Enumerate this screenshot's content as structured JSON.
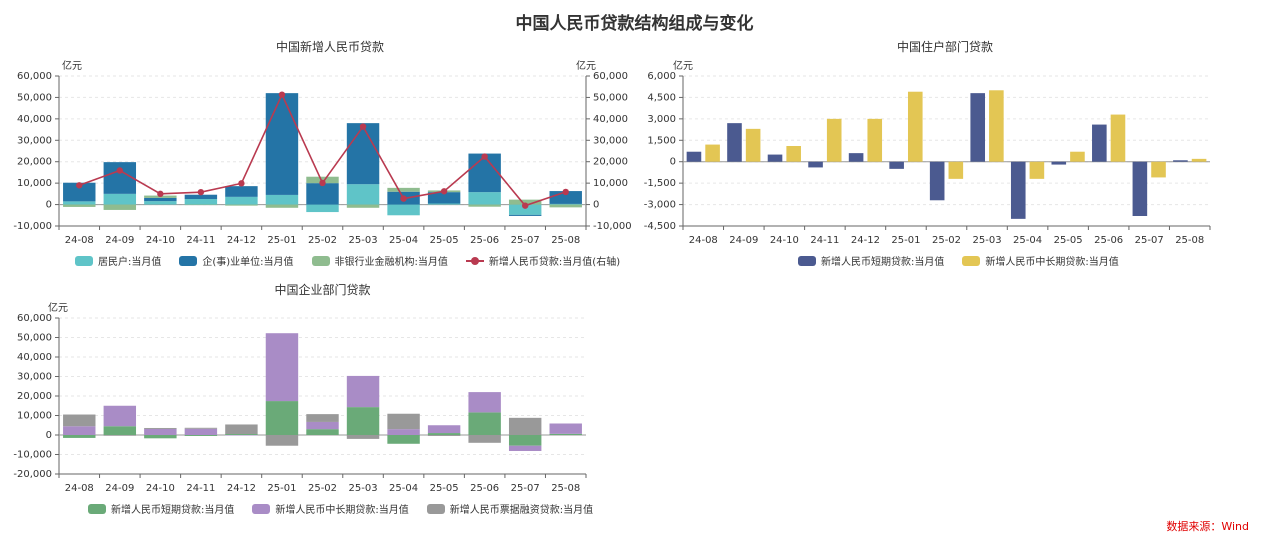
{
  "page": {
    "title": "中国人民币贷款结构组成与变化",
    "source": "数据来源：Wind"
  },
  "chart_data": [
    {
      "type": "bar",
      "stacked": true,
      "title": "中国新增人民币贷款",
      "unit": "亿元",
      "unit_right": "亿元",
      "categories": [
        "24-08",
        "24-09",
        "24-10",
        "24-11",
        "24-12",
        "25-01",
        "25-02",
        "25-03",
        "25-04",
        "25-05",
        "25-06",
        "25-07",
        "25-08"
      ],
      "ylim": [
        -10000,
        60000
      ],
      "yticks": [
        "-10,000",
        "0",
        "10,000",
        "20,000",
        "30,000",
        "40,000",
        "50,000",
        "60,000"
      ],
      "grid": true,
      "legend_position": "bottom",
      "series": [
        {
          "name": "居民户:当月值",
          "color": "#5fc4c8",
          "values": [
            1500,
            5000,
            1600,
            2600,
            3600,
            4500,
            -3500,
            9500,
            -5000,
            500,
            5800,
            -4800,
            300
          ]
        },
        {
          "name": "企(事)业单位:当月值",
          "color": "#2474a6",
          "values": [
            8700,
            14800,
            1500,
            2000,
            5000,
            47500,
            10000,
            28500,
            6000,
            5300,
            18000,
            -500,
            6000
          ]
        },
        {
          "name": "非银行业金融机构:当月值",
          "color": "#8fbc8f",
          "values": [
            -1100,
            -2500,
            1100,
            -200,
            -500,
            -1500,
            3000,
            -1500,
            1800,
            800,
            -1000,
            2300,
            -1300
          ]
        },
        {
          "name": "新增人民币贷款:当月值(右轴)",
          "color": "#b93a50",
          "type": "line",
          "axis": "right",
          "values": [
            9000,
            15900,
            5000,
            5800,
            9900,
            51300,
            10100,
            36400,
            2800,
            6200,
            22400,
            -500,
            5900
          ]
        }
      ]
    },
    {
      "type": "bar",
      "title": "中国住户部门贷款",
      "unit": "亿元",
      "categories": [
        "24-08",
        "24-09",
        "24-10",
        "24-11",
        "24-12",
        "25-01",
        "25-02",
        "25-03",
        "25-04",
        "25-05",
        "25-06",
        "25-07",
        "25-08"
      ],
      "ylim": [
        -4500,
        6000
      ],
      "yticks": [
        "-4,500",
        "-3,000",
        "-1,500",
        "0",
        "1,500",
        "3,000",
        "4,500",
        "6,000"
      ],
      "grid": true,
      "legend_position": "bottom",
      "series": [
        {
          "name": "新增人民币短期贷款:当月值",
          "color": "#4b5a90",
          "values": [
            700,
            2700,
            500,
            -400,
            600,
            -500,
            -2700,
            4800,
            -4000,
            -200,
            2600,
            -3800,
            100
          ]
        },
        {
          "name": "新增人民币中长期贷款:当月值",
          "color": "#e3c654",
          "values": [
            1200,
            2300,
            1100,
            3000,
            3000,
            4900,
            -1200,
            5000,
            -1200,
            700,
            3300,
            -1100,
            200
          ]
        }
      ]
    },
    {
      "type": "bar",
      "stacked": true,
      "title": "中国企业部门贷款",
      "unit": "亿元",
      "categories": [
        "24-08",
        "24-09",
        "24-10",
        "24-11",
        "24-12",
        "25-01",
        "25-02",
        "25-03",
        "25-04",
        "25-05",
        "25-06",
        "25-07",
        "25-08"
      ],
      "ylim": [
        -20000,
        60000
      ],
      "yticks": [
        "-20,000",
        "-10,000",
        "0",
        "10,000",
        "20,000",
        "30,000",
        "40,000",
        "50,000",
        "60,000"
      ],
      "grid": true,
      "legend_position": "bottom",
      "series": [
        {
          "name": "新增人民币短期贷款:当月值",
          "color": "#6aaa78",
          "values": [
            -1500,
            4500,
            -1700,
            -500,
            500,
            17400,
            3000,
            14300,
            -4500,
            1000,
            11600,
            -5500,
            600
          ]
        },
        {
          "name": "新增人民币中长期贷款:当月值",
          "color": "#a98cc6",
          "values": [
            4500,
            10500,
            3100,
            3200,
            -200,
            34800,
            3700,
            16000,
            3000,
            4000,
            10400,
            -2700,
            5300
          ]
        },
        {
          "name": "新增人民币票据融资贷款:当月值",
          "color": "#999999",
          "values": [
            6000,
            -400,
            500,
            500,
            4900,
            -5500,
            4000,
            -2000,
            7900,
            -500,
            -4000,
            8800,
            -200
          ]
        }
      ]
    }
  ]
}
